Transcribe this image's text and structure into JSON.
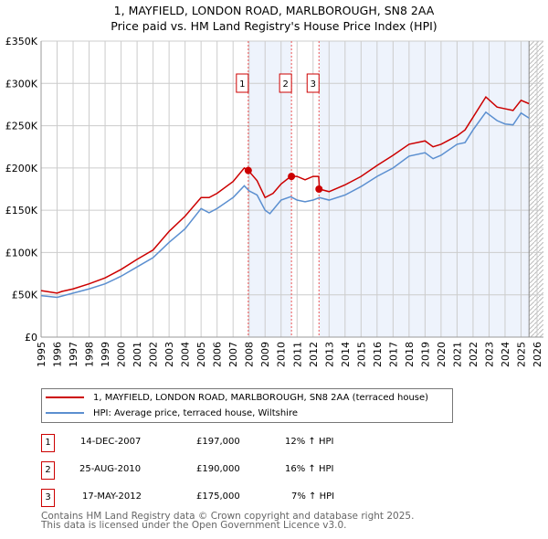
{
  "chart_data": {
    "type": "line",
    "title": "1, MAYFIELD, LONDON ROAD, MARLBOROUGH, SN8 2AA",
    "subtitle": "Price paid vs. HM Land Registry's House Price Index (HPI)",
    "xlim": [
      1995,
      2026
    ],
    "ylim": [
      0,
      350000
    ],
    "x_ticks": [
      "1995",
      "1996",
      "1997",
      "1998",
      "1999",
      "2000",
      "2001",
      "2002",
      "2003",
      "2004",
      "2005",
      "2006",
      "2007",
      "2008",
      "2009",
      "2010",
      "2011",
      "2012",
      "2013",
      "2014",
      "2015",
      "2016",
      "2017",
      "2018",
      "2019",
      "2020",
      "2021",
      "2022",
      "2023",
      "2024",
      "2025",
      "2026"
    ],
    "y_ticks": [
      {
        "v": 0,
        "label": "£0"
      },
      {
        "v": 50000,
        "label": "£50K"
      },
      {
        "v": 100000,
        "label": "£100K"
      },
      {
        "v": 150000,
        "label": "£150K"
      },
      {
        "v": 200000,
        "label": "£200K"
      },
      {
        "v": 250000,
        "label": "£250K"
      },
      {
        "v": 300000,
        "label": "£300K"
      },
      {
        "v": 350000,
        "label": "£350K"
      }
    ],
    "grid": true,
    "series": [
      {
        "name": "1, MAYFIELD, LONDON ROAD, MARLBOROUGH, SN8 2AA (terraced house)",
        "color": "#cc0000",
        "x": [
          1995,
          1996,
          1996.3,
          1997,
          1998,
          1999,
          2000,
          2001,
          2002,
          2003,
          2004,
          2005,
          2005.5,
          2006,
          2007,
          2007.7,
          2008,
          2008.5,
          2009,
          2009.5,
          2010,
          2010.6,
          2011,
          2011.5,
          2012,
          2012.35,
          2012.4,
          2013,
          2014,
          2015,
          2016,
          2017,
          2018,
          2019,
          2019.5,
          2020,
          2021,
          2021.5,
          2022,
          2022.8,
          2023.5,
          2024,
          2024.5,
          2025,
          2025.5
        ],
        "y": [
          55000,
          52000,
          54000,
          57000,
          63000,
          70000,
          80000,
          92000,
          103000,
          125000,
          143000,
          165000,
          165000,
          170000,
          184000,
          200000,
          196000,
          185000,
          165000,
          170000,
          181000,
          190000,
          190000,
          186000,
          190000,
          190000,
          175000,
          172000,
          180000,
          190000,
          203000,
          215000,
          228000,
          232000,
          225000,
          228000,
          238000,
          245000,
          260000,
          284000,
          272000,
          270000,
          268000,
          280000,
          276000
        ]
      },
      {
        "name": "HPI: Average price, terraced house, Wiltshire",
        "color": "#5b8fd0",
        "x": [
          1995,
          1996,
          1997,
          1998,
          1999,
          2000,
          2001,
          2002,
          2003,
          2004,
          2005,
          2005.5,
          2006,
          2007,
          2007.7,
          2008,
          2008.5,
          2009,
          2009.3,
          2010,
          2010.6,
          2011,
          2011.5,
          2012,
          2012.4,
          2013,
          2014,
          2015,
          2016,
          2017,
          2018,
          2019,
          2019.5,
          2020,
          2021,
          2021.5,
          2022,
          2022.8,
          2023.5,
          2024,
          2024.5,
          2025,
          2025.5
        ],
        "y": [
          49000,
          47000,
          52000,
          57000,
          63000,
          72000,
          83000,
          94000,
          112000,
          128000,
          152000,
          147000,
          152000,
          165000,
          179000,
          173000,
          168000,
          150000,
          146000,
          162000,
          166000,
          162000,
          160000,
          162000,
          165000,
          162000,
          168000,
          178000,
          190000,
          200000,
          214000,
          218000,
          211000,
          215000,
          228000,
          230000,
          245000,
          266000,
          256000,
          252000,
          251000,
          265000,
          259000
        ]
      }
    ],
    "sales": [
      {
        "n": "1",
        "x": 2007.95,
        "y": 197000,
        "date": "14-DEC-2007",
        "price": "£197,000",
        "hpi": "12% ↑ HPI"
      },
      {
        "n": "2",
        "x": 2010.65,
        "y": 190000,
        "date": "25-AUG-2010",
        "price": "£190,000",
        "hpi": "16% ↑ HPI"
      },
      {
        "n": "3",
        "x": 2012.37,
        "y": 175000,
        "date": "17-MAY-2012",
        "price": "£175,000",
        "hpi": "7% ↑ HPI"
      }
    ],
    "hatch_from": 2025.5
  },
  "footer": {
    "line1": "Contains HM Land Registry data © Crown copyright and database right 2025.",
    "line2": "This data is licensed under the Open Government Licence v3.0."
  }
}
